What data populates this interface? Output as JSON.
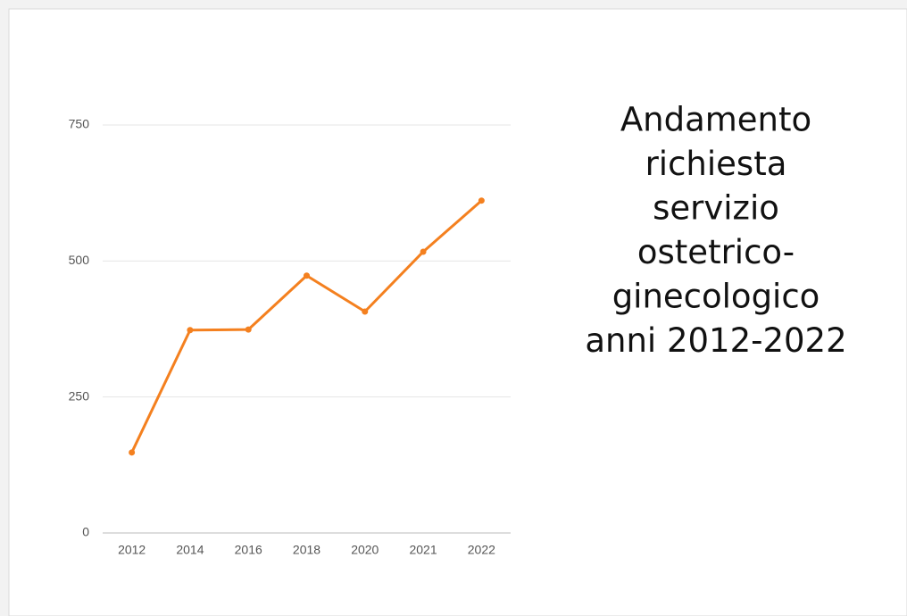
{
  "chart_data": {
    "type": "line",
    "title": [
      "Andamento",
      "richiesta",
      "servizio",
      "ostetrico-",
      "ginecologico",
      "anni 2012-2022"
    ],
    "categories": [
      "2012",
      "2014",
      "2016",
      "2018",
      "2020",
      "2021",
      "2022"
    ],
    "series": [
      {
        "name": null,
        "color": "#f4801f",
        "values": [
          148,
          373,
          374,
          473,
          407,
          517,
          611
        ]
      }
    ],
    "ylim": [
      0,
      750
    ],
    "yticks": [
      0,
      250,
      500,
      750
    ],
    "grid": true
  }
}
